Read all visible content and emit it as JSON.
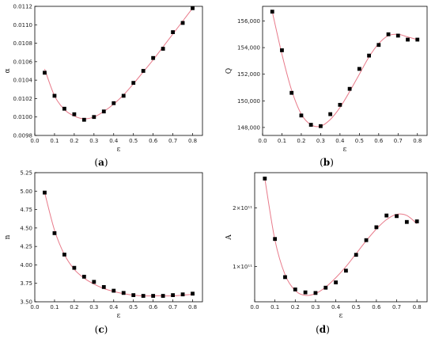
{
  "chart_data": [
    {
      "type": "scatter",
      "panel_label": "a",
      "xlabel": "ε",
      "ylabel": "α",
      "xlim": [
        0,
        0.85
      ],
      "ylim": [
        0.0098,
        0.0112
      ],
      "xticks": [
        "0.0",
        "0.1",
        "0.2",
        "0.3",
        "0.4",
        "0.5",
        "0.6",
        "0.7",
        "0.8"
      ],
      "yticks": [
        "0.0098",
        "0.0100",
        "0.0102",
        "0.0104",
        "0.0106",
        "0.0108",
        "0.0110",
        "0.0112"
      ],
      "ytick_values": [
        0.0098,
        0.01,
        0.0102,
        0.0104,
        0.0106,
        0.0108,
        0.011,
        0.0112
      ],
      "x": [
        0.05,
        0.1,
        0.15,
        0.2,
        0.25,
        0.3,
        0.35,
        0.4,
        0.45,
        0.5,
        0.55,
        0.6,
        0.65,
        0.7,
        0.75,
        0.8
      ],
      "y": [
        0.01048,
        0.01023,
        0.01009,
        0.01003,
        0.00997,
        0.01,
        0.01006,
        0.01015,
        0.01023,
        0.01037,
        0.0105,
        0.01064,
        0.01074,
        0.01092,
        0.01102,
        0.01118
      ],
      "fit": [
        [
          0.05,
          0.01052
        ],
        [
          0.1,
          0.01023
        ],
        [
          0.15,
          0.01008
        ],
        [
          0.2,
          0.01001
        ],
        [
          0.25,
          0.00998
        ],
        [
          0.3,
          0.01
        ],
        [
          0.35,
          0.01006
        ],
        [
          0.4,
          0.01014
        ],
        [
          0.45,
          0.01024
        ],
        [
          0.5,
          0.01036
        ],
        [
          0.55,
          0.01049
        ],
        [
          0.6,
          0.01062
        ],
        [
          0.65,
          0.01076
        ],
        [
          0.7,
          0.0109
        ],
        [
          0.75,
          0.01104
        ],
        [
          0.8,
          0.01118
        ]
      ]
    },
    {
      "type": "scatter",
      "panel_label": "b",
      "xlabel": "ε",
      "ylabel": "Q",
      "xlim": [
        0,
        0.85
      ],
      "ylim": [
        147400,
        157100
      ],
      "xticks": [
        "0.0",
        "0.1",
        "0.2",
        "0.3",
        "0.4",
        "0.5",
        "0.6",
        "0.7",
        "0.8"
      ],
      "yticks": [
        "148,000",
        "150,000",
        "152,000",
        "154,000",
        "156,000"
      ],
      "ytick_values": [
        148000,
        150000,
        152000,
        154000,
        156000
      ],
      "x": [
        0.05,
        0.1,
        0.15,
        0.2,
        0.25,
        0.3,
        0.35,
        0.4,
        0.45,
        0.5,
        0.55,
        0.6,
        0.65,
        0.7,
        0.75,
        0.8
      ],
      "y": [
        156700,
        153800,
        150600,
        148900,
        148200,
        148100,
        149000,
        149700,
        150900,
        152400,
        153400,
        154200,
        155000,
        154900,
        154600,
        154600
      ],
      "fit": [
        [
          0.05,
          156700
        ],
        [
          0.1,
          153500
        ],
        [
          0.15,
          150800
        ],
        [
          0.2,
          149000
        ],
        [
          0.25,
          148200
        ],
        [
          0.3,
          148100
        ],
        [
          0.35,
          148600
        ],
        [
          0.4,
          149500
        ],
        [
          0.45,
          150700
        ],
        [
          0.5,
          152000
        ],
        [
          0.55,
          153300
        ],
        [
          0.6,
          154300
        ],
        [
          0.65,
          154900
        ],
        [
          0.7,
          155000
        ],
        [
          0.75,
          154800
        ],
        [
          0.8,
          154600
        ]
      ]
    },
    {
      "type": "scatter",
      "panel_label": "c",
      "xlabel": "ε",
      "ylabel": "n",
      "xlim": [
        0,
        0.85
      ],
      "ylim": [
        3.5,
        5.25
      ],
      "xticks": [
        "0.0",
        "0.1",
        "0.2",
        "0.3",
        "0.4",
        "0.5",
        "0.6",
        "0.7",
        "0.8"
      ],
      "yticks": [
        "3.50",
        "3.75",
        "4.00",
        "4.25",
        "4.50",
        "4.75",
        "5.00",
        "5.25"
      ],
      "ytick_values": [
        3.5,
        3.75,
        4.0,
        4.25,
        4.5,
        4.75,
        5.0,
        5.25
      ],
      "x": [
        0.05,
        0.1,
        0.15,
        0.2,
        0.25,
        0.3,
        0.35,
        0.4,
        0.45,
        0.5,
        0.55,
        0.6,
        0.65,
        0.7,
        0.75,
        0.8
      ],
      "y": [
        4.98,
        4.43,
        4.14,
        3.96,
        3.84,
        3.77,
        3.7,
        3.65,
        3.62,
        3.59,
        3.58,
        3.58,
        3.58,
        3.59,
        3.6,
        3.61
      ],
      "fit": [
        [
          0.05,
          4.98
        ],
        [
          0.1,
          4.47
        ],
        [
          0.15,
          4.14
        ],
        [
          0.2,
          3.94
        ],
        [
          0.25,
          3.82
        ],
        [
          0.3,
          3.74
        ],
        [
          0.35,
          3.68
        ],
        [
          0.4,
          3.64
        ],
        [
          0.45,
          3.61
        ],
        [
          0.5,
          3.59
        ],
        [
          0.55,
          3.58
        ],
        [
          0.6,
          3.58
        ],
        [
          0.65,
          3.58
        ],
        [
          0.7,
          3.58
        ],
        [
          0.75,
          3.59
        ],
        [
          0.8,
          3.6
        ]
      ]
    },
    {
      "type": "scatter",
      "panel_label": "d",
      "xlabel": "ε",
      "ylabel": "A",
      "xlim": [
        0,
        0.85
      ],
      "ylim": [
        40000000000.0,
        260000000000.0
      ],
      "xticks": [
        "0.0",
        "0.1",
        "0.2",
        "0.3",
        "0.4",
        "0.5",
        "0.6",
        "0.7",
        "0.8"
      ],
      "yticks": [
        "1×10¹¹",
        "2×10¹¹"
      ],
      "ytick_values": [
        100000000000.0,
        200000000000.0
      ],
      "x": [
        0.05,
        0.1,
        0.15,
        0.2,
        0.25,
        0.3,
        0.35,
        0.4,
        0.45,
        0.5,
        0.55,
        0.6,
        0.65,
        0.7,
        0.75,
        0.8
      ],
      "y": [
        250000000000.0,
        147000000000.0,
        82000000000.0,
        61000000000.0,
        56000000000.0,
        55000000000.0,
        64000000000.0,
        73000000000.0,
        93000000000.0,
        120000000000.0,
        145000000000.0,
        167000000000.0,
        187000000000.0,
        186000000000.0,
        176000000000.0,
        177000000000.0
      ],
      "fit": [
        [
          0.05,
          250000000000.0
        ],
        [
          0.1,
          145000000000.0
        ],
        [
          0.15,
          86000000000.0
        ],
        [
          0.2,
          59000000000.0
        ],
        [
          0.25,
          51000000000.0
        ],
        [
          0.3,
          54000000000.0
        ],
        [
          0.35,
          65000000000.0
        ],
        [
          0.4,
          81000000000.0
        ],
        [
          0.45,
          100000000000.0
        ],
        [
          0.5,
          122000000000.0
        ],
        [
          0.55,
          144000000000.0
        ],
        [
          0.6,
          164000000000.0
        ],
        [
          0.65,
          180000000000.0
        ],
        [
          0.7,
          189000000000.0
        ],
        [
          0.75,
          187000000000.0
        ],
        [
          0.8,
          173000000000.0
        ]
      ]
    }
  ],
  "colors": {
    "marker": "#000000",
    "fit_line": "#e87a8a",
    "axis": "#000000"
  }
}
